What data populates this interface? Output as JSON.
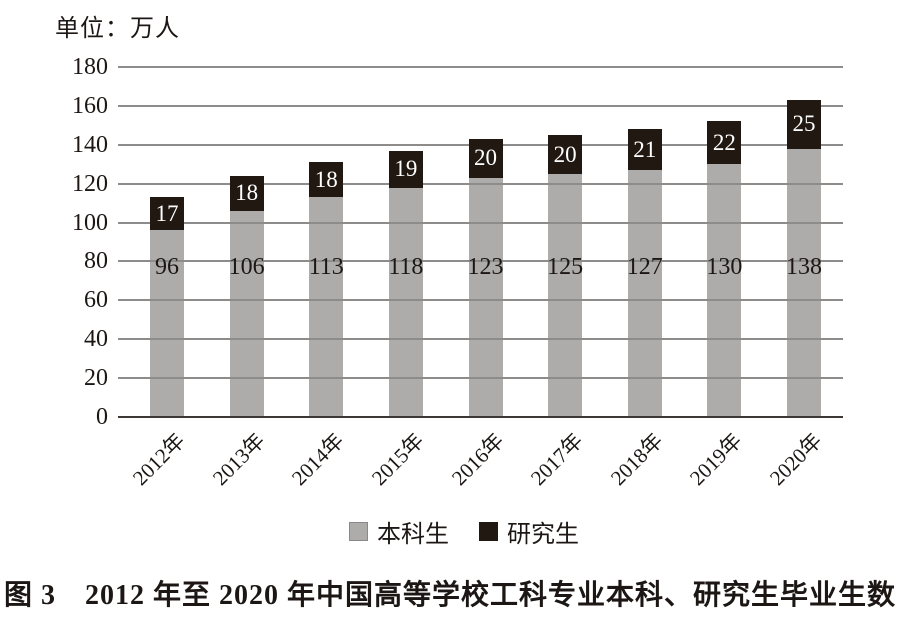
{
  "unit_label": "单位：万人",
  "caption": "图 3　2012 年至 2020 年中国高等学校工科专业本科、研究生毕业生数",
  "chart_data": {
    "type": "bar",
    "stacked": true,
    "unit": "万人",
    "categories": [
      "2012年",
      "2013年",
      "2014年",
      "2015年",
      "2016年",
      "2017年",
      "2018年",
      "2019年",
      "2020年"
    ],
    "series": [
      {
        "name": "本科生",
        "color": "#aeabab",
        "label_color": "#1c1714",
        "values": [
          96,
          106,
          113,
          118,
          123,
          125,
          127,
          130,
          138
        ]
      },
      {
        "name": "研究生",
        "color": "#211812",
        "label_color": "#ffffff",
        "values": [
          17,
          18,
          18,
          19,
          20,
          20,
          21,
          22,
          25
        ]
      }
    ],
    "ylim": [
      0,
      180
    ],
    "yticks": [
      0,
      20,
      40,
      60,
      80,
      100,
      120,
      140,
      160,
      180
    ],
    "grid": "horizontal",
    "legend_position": "bottom"
  },
  "legend": {
    "items": [
      {
        "label": "本科生",
        "color": "#aeabab",
        "border": "#8a8888"
      },
      {
        "label": "研究生",
        "color": "#211812",
        "border": "#211812"
      }
    ]
  },
  "colors": {
    "gridline": "#8e8b8b",
    "baseline": "#3c3836",
    "text": "#1c1714",
    "background": "#ffffff"
  }
}
